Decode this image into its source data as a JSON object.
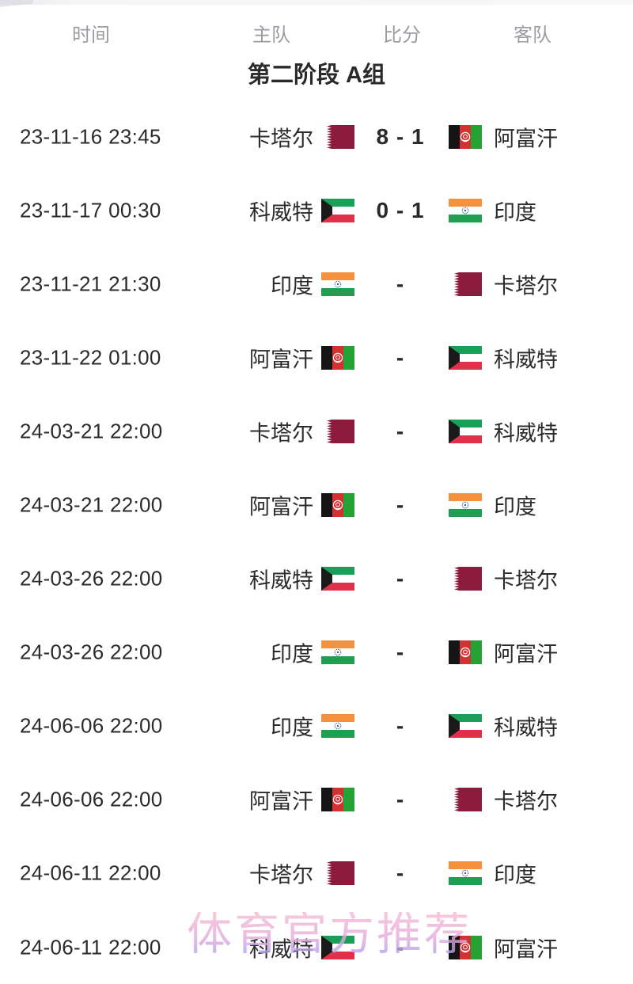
{
  "header": {
    "time": "时间",
    "home": "主队",
    "score": "比分",
    "away": "客队"
  },
  "group_title": "第二阶段 A组",
  "watermark": "体育官方推荐",
  "matches": [
    {
      "time": "23-11-16 23:45",
      "home": "卡塔尔",
      "home_flag": "qatar",
      "score": "8 - 1",
      "away": "阿富汗",
      "away_flag": "afghanistan"
    },
    {
      "time": "23-11-17 00:30",
      "home": "科威特",
      "home_flag": "kuwait",
      "score": "0 - 1",
      "away": "印度",
      "away_flag": "india"
    },
    {
      "time": "23-11-21 21:30",
      "home": "印度",
      "home_flag": "india",
      "score": "-",
      "away": "卡塔尔",
      "away_flag": "qatar"
    },
    {
      "time": "23-11-22 01:00",
      "home": "阿富汗",
      "home_flag": "afghanistan",
      "score": "-",
      "away": "科威特",
      "away_flag": "kuwait"
    },
    {
      "time": "24-03-21 22:00",
      "home": "卡塔尔",
      "home_flag": "qatar",
      "score": "-",
      "away": "科威特",
      "away_flag": "kuwait"
    },
    {
      "time": "24-03-21 22:00",
      "home": "阿富汗",
      "home_flag": "afghanistan",
      "score": "-",
      "away": "印度",
      "away_flag": "india"
    },
    {
      "time": "24-03-26 22:00",
      "home": "科威特",
      "home_flag": "kuwait",
      "score": "-",
      "away": "卡塔尔",
      "away_flag": "qatar"
    },
    {
      "time": "24-03-26 22:00",
      "home": "印度",
      "home_flag": "india",
      "score": "-",
      "away": "阿富汗",
      "away_flag": "afghanistan"
    },
    {
      "time": "24-06-06 22:00",
      "home": "印度",
      "home_flag": "india",
      "score": "-",
      "away": "科威特",
      "away_flag": "kuwait"
    },
    {
      "time": "24-06-06 22:00",
      "home": "阿富汗",
      "home_flag": "afghanistan",
      "score": "-",
      "away": "卡塔尔",
      "away_flag": "qatar"
    },
    {
      "time": "24-06-11 22:00",
      "home": "卡塔尔",
      "home_flag": "qatar",
      "score": "-",
      "away": "印度",
      "away_flag": "india"
    },
    {
      "time": "24-06-11 22:00",
      "home": "科威特",
      "home_flag": "kuwait",
      "score": "-",
      "away": "阿富汗",
      "away_flag": "afghanistan"
    }
  ],
  "colors": {
    "header_text": "#9b9ba2",
    "title_text": "#2a2a2c",
    "body_text": "#2b2b2e",
    "watermark_pink": "#f6bcd4",
    "watermark_violet": "#a8a2ee",
    "flags": {
      "qatar": {
        "maroon": "#8d1b3d",
        "white": "#ffffff"
      },
      "afghanistan": {
        "black": "#151515",
        "red": "#d53032",
        "green": "#25a233",
        "emblem": "#ffffff"
      },
      "kuwait": {
        "green": "#1b9e57",
        "white": "#ffffff",
        "red": "#e0314b",
        "black": "#1a1a1a"
      },
      "india": {
        "saffron": "#f6913e",
        "white": "#ffffff",
        "green": "#1f9e52",
        "navy": "#2a4fa0"
      }
    }
  }
}
